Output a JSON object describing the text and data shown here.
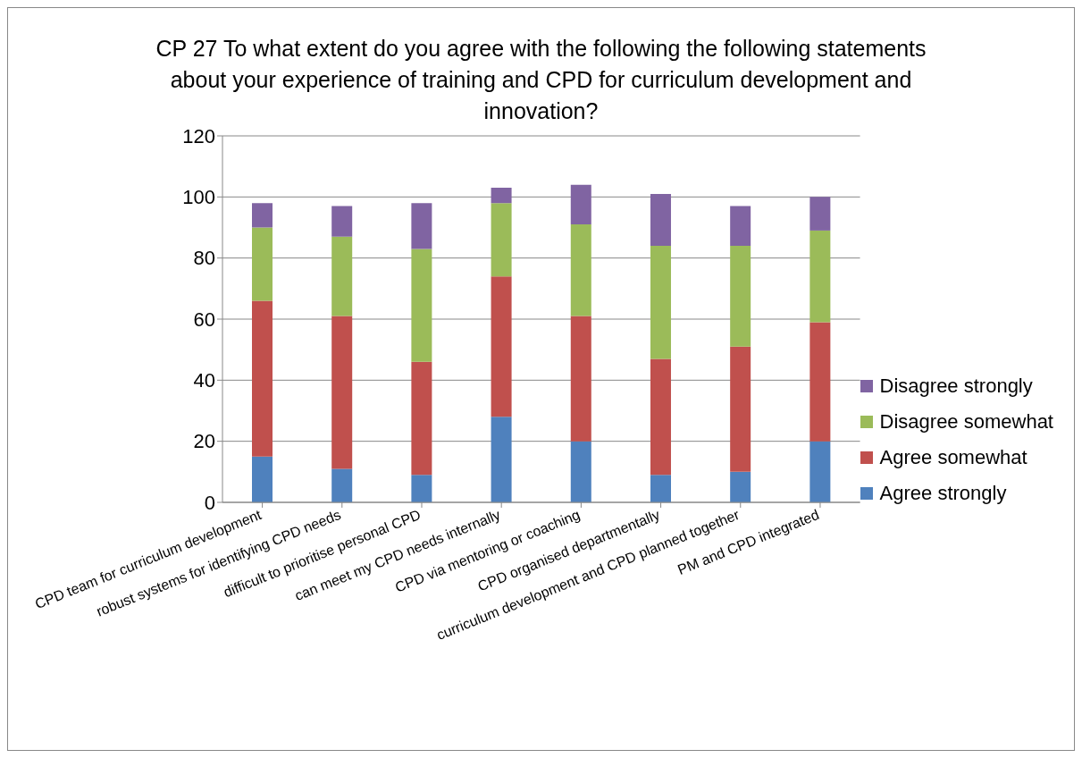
{
  "chart_data": {
    "type": "bar",
    "title": "CP 27 To what extent do you agree with the following the following statements about your experience of training and CPD for curriculum development and innovation?",
    "categories": [
      "CPD team for curriculum development",
      "robust systems for identifying CPD needs",
      "difficult to prioritise personal CPD",
      "can meet my CPD needs internally",
      "CPD via mentoring or coaching",
      "CPD organised departmentally",
      "curriculum development and CPD planned together",
      "PM and CPD integrated"
    ],
    "stacked": true,
    "series": [
      {
        "name": "Agree strongly",
        "color": "#4f81bd",
        "values": [
          15,
          11,
          9,
          28,
          20,
          9,
          10,
          20
        ]
      },
      {
        "name": "Agree somewhat",
        "color": "#c0504d",
        "values": [
          51,
          50,
          37,
          46,
          41,
          38,
          41,
          39
        ]
      },
      {
        "name": "Disagree somewhat",
        "color": "#9bbb59",
        "values": [
          24,
          26,
          37,
          24,
          30,
          37,
          33,
          30
        ]
      },
      {
        "name": "Disagree strongly",
        "color": "#8064a2",
        "values": [
          8,
          10,
          15,
          5,
          13,
          17,
          13,
          11
        ]
      }
    ],
    "ylim": [
      0,
      120
    ],
    "yticks": [
      0,
      20,
      40,
      60,
      80,
      100,
      120
    ],
    "grid": "y",
    "legend": "right"
  }
}
